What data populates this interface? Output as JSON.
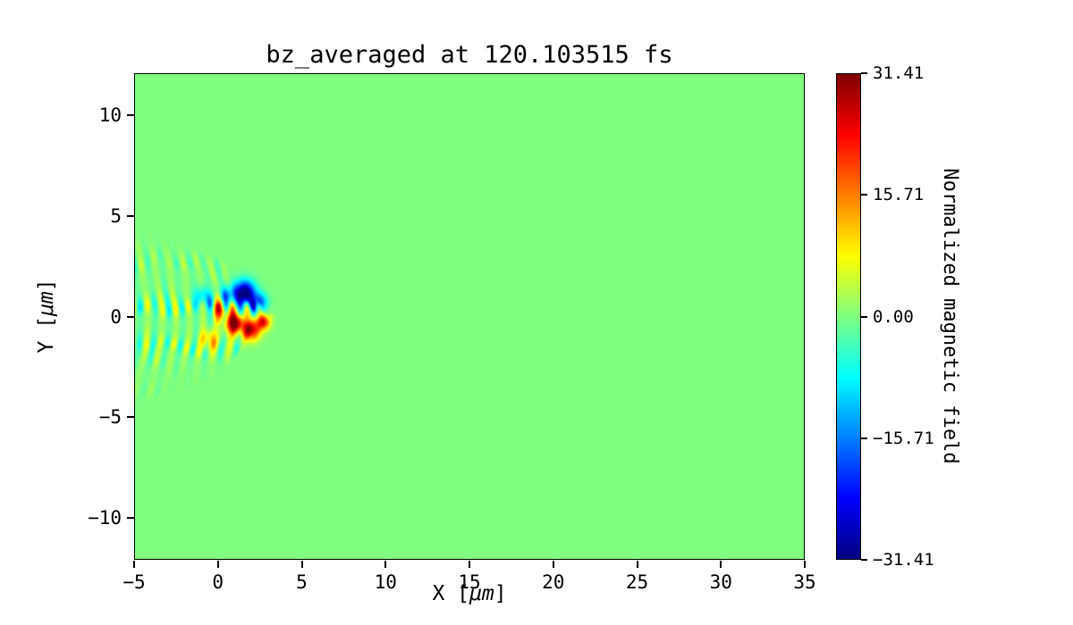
{
  "chart_data": {
    "type": "heatmap",
    "title": "bz_averaged at 120.103515 fs",
    "xlabel": "X [μm]",
    "ylabel": "Y [μm]",
    "xlabel_parts": {
      "pre": "X [",
      "unit": "μm",
      "post": "]"
    },
    "ylabel_parts": {
      "pre": "Y [",
      "unit": "μm",
      "post": "]"
    },
    "xlim": [
      -5,
      35
    ],
    "ylim": [
      -12.1,
      12.1
    ],
    "x_ticks": [
      {
        "v": -5,
        "label": "−5"
      },
      {
        "v": 0,
        "label": "0"
      },
      {
        "v": 5,
        "label": "5"
      },
      {
        "v": 10,
        "label": "10"
      },
      {
        "v": 15,
        "label": "15"
      },
      {
        "v": 20,
        "label": "20"
      },
      {
        "v": 25,
        "label": "25"
      },
      {
        "v": 30,
        "label": "30"
      },
      {
        "v": 35,
        "label": "35"
      }
    ],
    "y_ticks": [
      {
        "v": 10,
        "label": "10"
      },
      {
        "v": 5,
        "label": "5"
      },
      {
        "v": 0,
        "label": "0"
      },
      {
        "v": -5,
        "label": "−5"
      },
      {
        "v": -10,
        "label": "−10"
      }
    ],
    "colormap": "jet",
    "background_value": 0.0,
    "background_color": "#7dff7d",
    "colorbar": {
      "label": "Normalized magnetic field",
      "vmin": -31.41,
      "vmax": 31.41,
      "ticks": [
        {
          "v": 31.41,
          "label": "31.41"
        },
        {
          "v": 15.71,
          "label": "15.71"
        },
        {
          "v": 0.0,
          "label": "0.00"
        },
        {
          "v": -15.71,
          "label": "−15.71"
        },
        {
          "v": -31.41,
          "label": "−31.41"
        }
      ]
    },
    "field_model": {
      "note": "Laser pulse entering from left edge: oscillating wavefronts (alternating positive/negative bands) spanning y≈−4.5..4.5 at x=−5, converging to an apex near x≈3.3, with a strong turbulent core of saturated red/dark-blue spots around (0..2.7, −1..1.3). Field is 0 (green) everywhere else.",
      "cone": {
        "x_start": -5.4,
        "x_apex": 3.3,
        "half_width_start": 4.55,
        "half_width_mid": 3.05
      },
      "wavelength_um": 0.85,
      "curvature": 0.045,
      "base_amplitude": 8.5,
      "core": {
        "x": 1.15,
        "y": -0.05,
        "sigma_x": 1.35,
        "sigma_y": 1.25,
        "gain": 2.3
      },
      "blobs": [
        {
          "x": 1.55,
          "y": 1.15,
          "r": 0.6,
          "v": -36
        },
        {
          "x": 2.45,
          "y": 0.7,
          "r": 0.45,
          "v": -18
        },
        {
          "x": 0.55,
          "y": 1.05,
          "r": 0.45,
          "v": -14
        },
        {
          "x": 0.95,
          "y": -0.35,
          "r": 0.5,
          "v": 34
        },
        {
          "x": 1.95,
          "y": -0.65,
          "r": 0.5,
          "v": 30
        },
        {
          "x": 2.7,
          "y": -0.25,
          "r": 0.38,
          "v": 24
        },
        {
          "x": 0.15,
          "y": 0.3,
          "r": 0.45,
          "v": 18
        },
        {
          "x": -0.55,
          "y": -1.15,
          "r": 0.5,
          "v": 13
        },
        {
          "x": -0.95,
          "y": 0.95,
          "r": 0.5,
          "v": -12
        }
      ]
    }
  }
}
